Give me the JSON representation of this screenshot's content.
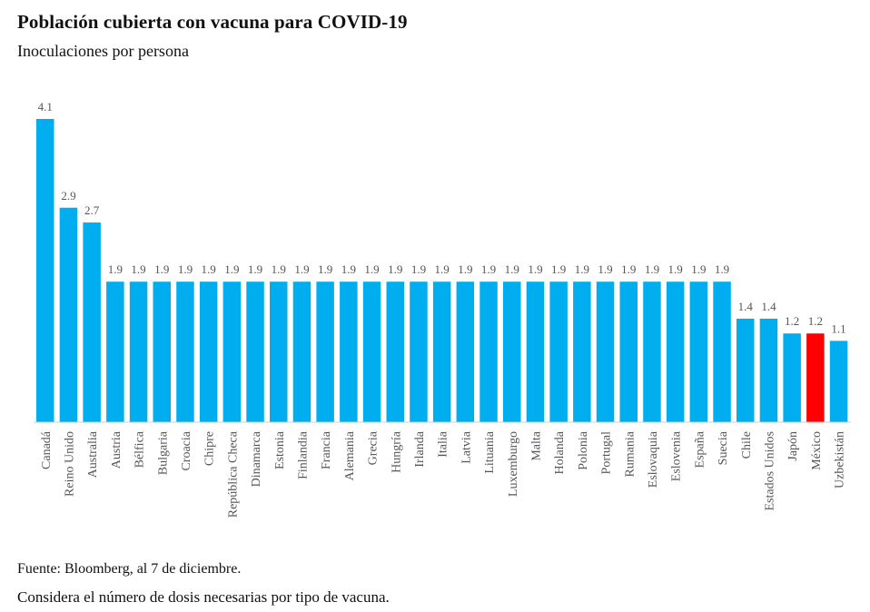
{
  "title": "Población cubierta con vacuna para COVID-19",
  "subtitle": "Inoculaciones por persona",
  "source": "Fuente: Bloomberg, al 7 de diciembre.",
  "note": "Considera el número de dosis necesarias por tipo de vacuna.",
  "colors": {
    "bar": "#00AEEF",
    "highlight": "#FF0000",
    "axis": "#cccccc",
    "label": "#555555"
  },
  "chart_data": {
    "type": "bar",
    "categories": [
      "Canadá",
      "Reino Unido",
      "Australia",
      "Austria",
      "Bélfica",
      "Bulgaria",
      "Croacia",
      "Chipre",
      "República Checa",
      "Dinamarca",
      "Estonia",
      "Finlandia",
      "Francia",
      "Alemania",
      "Grecia",
      "Hungría",
      "Irlanda",
      "Italia",
      "Latvia",
      "Lituania",
      "Luxemburgo",
      "Malta",
      "Holanda",
      "Polonia",
      "Portugal",
      "Rumania",
      "Eslovaquia",
      "Eslovenia",
      "España",
      "Suecia",
      "Chile",
      "Estados Unidos",
      "Japón",
      "México",
      "Uzbekistán"
    ],
    "values": [
      4.1,
      2.9,
      2.7,
      1.9,
      1.9,
      1.9,
      1.9,
      1.9,
      1.9,
      1.9,
      1.9,
      1.9,
      1.9,
      1.9,
      1.9,
      1.9,
      1.9,
      1.9,
      1.9,
      1.9,
      1.9,
      1.9,
      1.9,
      1.9,
      1.9,
      1.9,
      1.9,
      1.9,
      1.9,
      1.9,
      1.4,
      1.4,
      1.2,
      1.2,
      1.1
    ],
    "value_labels": [
      "4.1",
      "2.9",
      "2.7",
      "1.9",
      "1.9",
      "1.9",
      "1.9",
      "1.9",
      "1.9",
      "1.9",
      "1.9",
      "1.9",
      "1.9",
      "1.9",
      "1.9",
      "1.9",
      "1.9",
      "1.9",
      "1.9",
      "1.9",
      "1.9",
      "1.9",
      "1.9",
      "1.9",
      "1.9",
      "1.9",
      "1.9",
      "1.9",
      "1.9",
      "1.9",
      "1.4",
      "1.4",
      "1.2",
      "1.2",
      "1.1"
    ],
    "highlight": "México",
    "ylim": [
      0,
      4.1
    ],
    "grid": false,
    "xlabel": "",
    "ylabel": ""
  }
}
